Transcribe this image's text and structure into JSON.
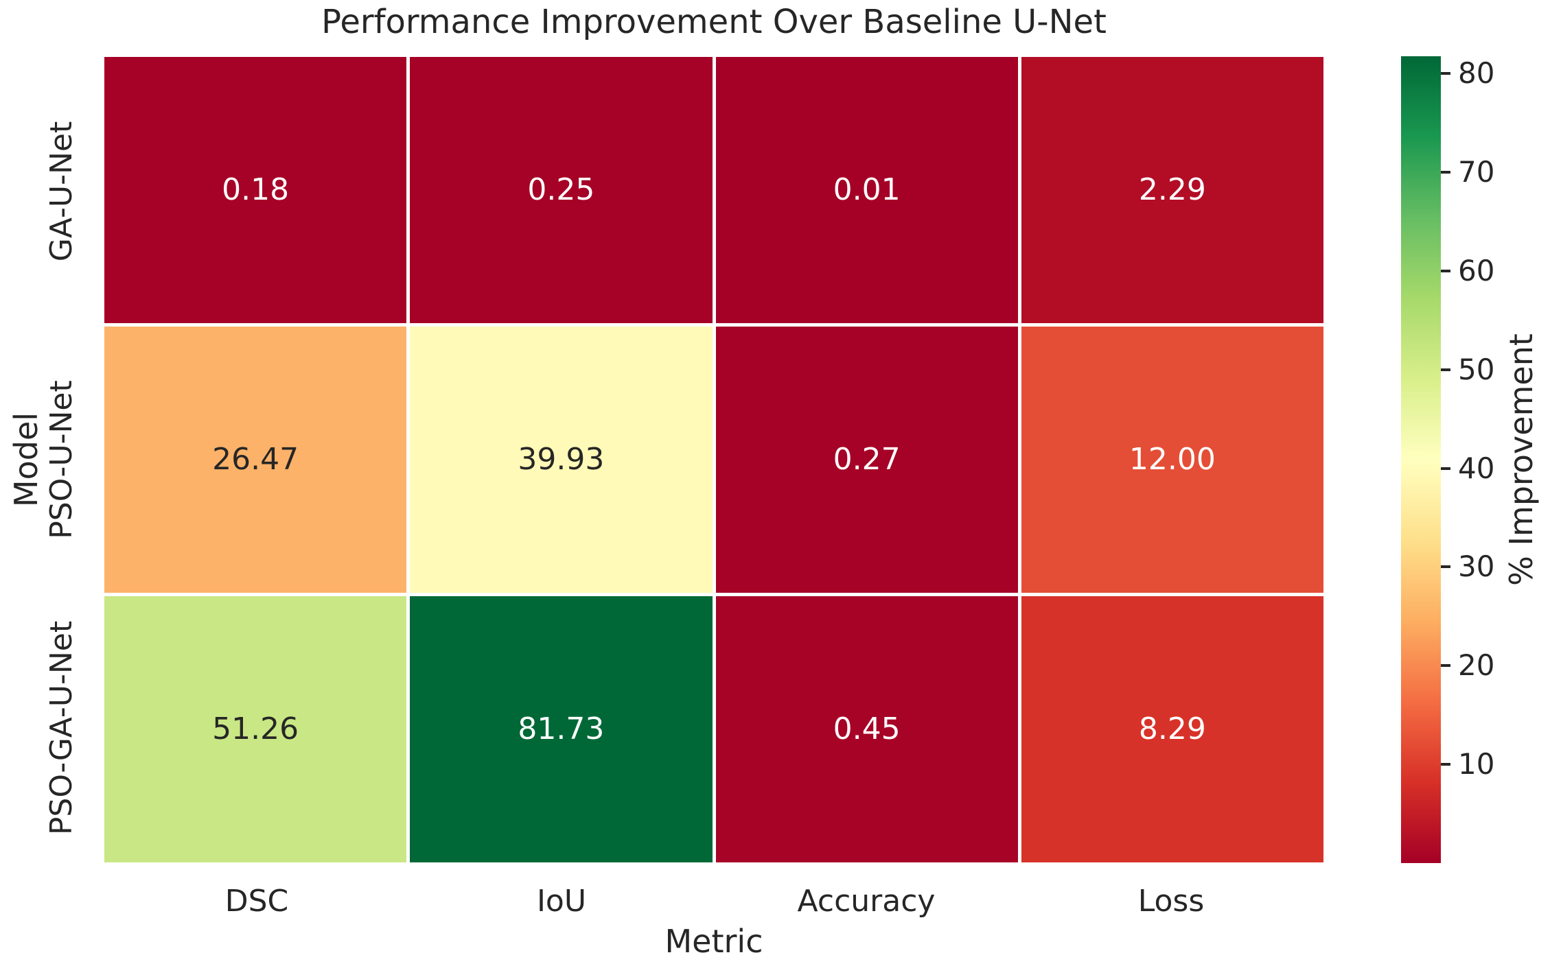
{
  "title": "Performance Improvement Over Baseline U-Net",
  "chart_data": {
    "type": "heatmap",
    "title": "Performance Improvement Over Baseline U-Net",
    "xlabel": "Metric",
    "ylabel": "Model",
    "x_categories": [
      "DSC",
      "IoU",
      "Accuracy",
      "Loss"
    ],
    "y_categories": [
      "GA-U-Net",
      "PSO-U-Net",
      "PSO-GA-U-Net"
    ],
    "values": [
      [
        0.18,
        0.25,
        0.01,
        2.29
      ],
      [
        26.47,
        39.93,
        0.27,
        12.0
      ],
      [
        51.26,
        81.73,
        0.45,
        8.29
      ]
    ],
    "value_labels": [
      [
        "0.18",
        "0.25",
        "0.01",
        "2.29"
      ],
      [
        "26.47",
        "39.93",
        "0.27",
        "12.00"
      ],
      [
        "51.26",
        "81.73",
        "0.45",
        "8.29"
      ]
    ],
    "cell_colors": [
      [
        "#A60126",
        "#A60126",
        "#A50026",
        "#B30D26"
      ],
      [
        "#FCB268",
        "#FFFAB7",
        "#A60126",
        "#E44E36"
      ],
      [
        "#C9E784",
        "#006837",
        "#A70327",
        "#D73229"
      ]
    ],
    "cell_text_colors": [
      [
        "#FFFFFF",
        "#FFFFFF",
        "#FFFFFF",
        "#FFFFFF"
      ],
      [
        "#262626",
        "#262626",
        "#FFFFFF",
        "#FFFFFF"
      ],
      [
        "#262626",
        "#FFFFFF",
        "#FFFFFF",
        "#FFFFFF"
      ]
    ],
    "colormap": "RdYlGn",
    "colormap_stops": [
      "#A50026",
      "#D73027",
      "#F46D43",
      "#FDAE61",
      "#FEE08B",
      "#FFFFBF",
      "#D9EF8B",
      "#A6D96A",
      "#66BD63",
      "#1A9850",
      "#006837"
    ],
    "vmin": 0.01,
    "vmax": 81.73,
    "grid_line_color": "#FFFFFF",
    "text_color": "#262626",
    "legend_position": "right",
    "colorbar": {
      "label": "% Improvement",
      "ticks": [
        10,
        20,
        30,
        40,
        50,
        60,
        70,
        80
      ]
    }
  }
}
